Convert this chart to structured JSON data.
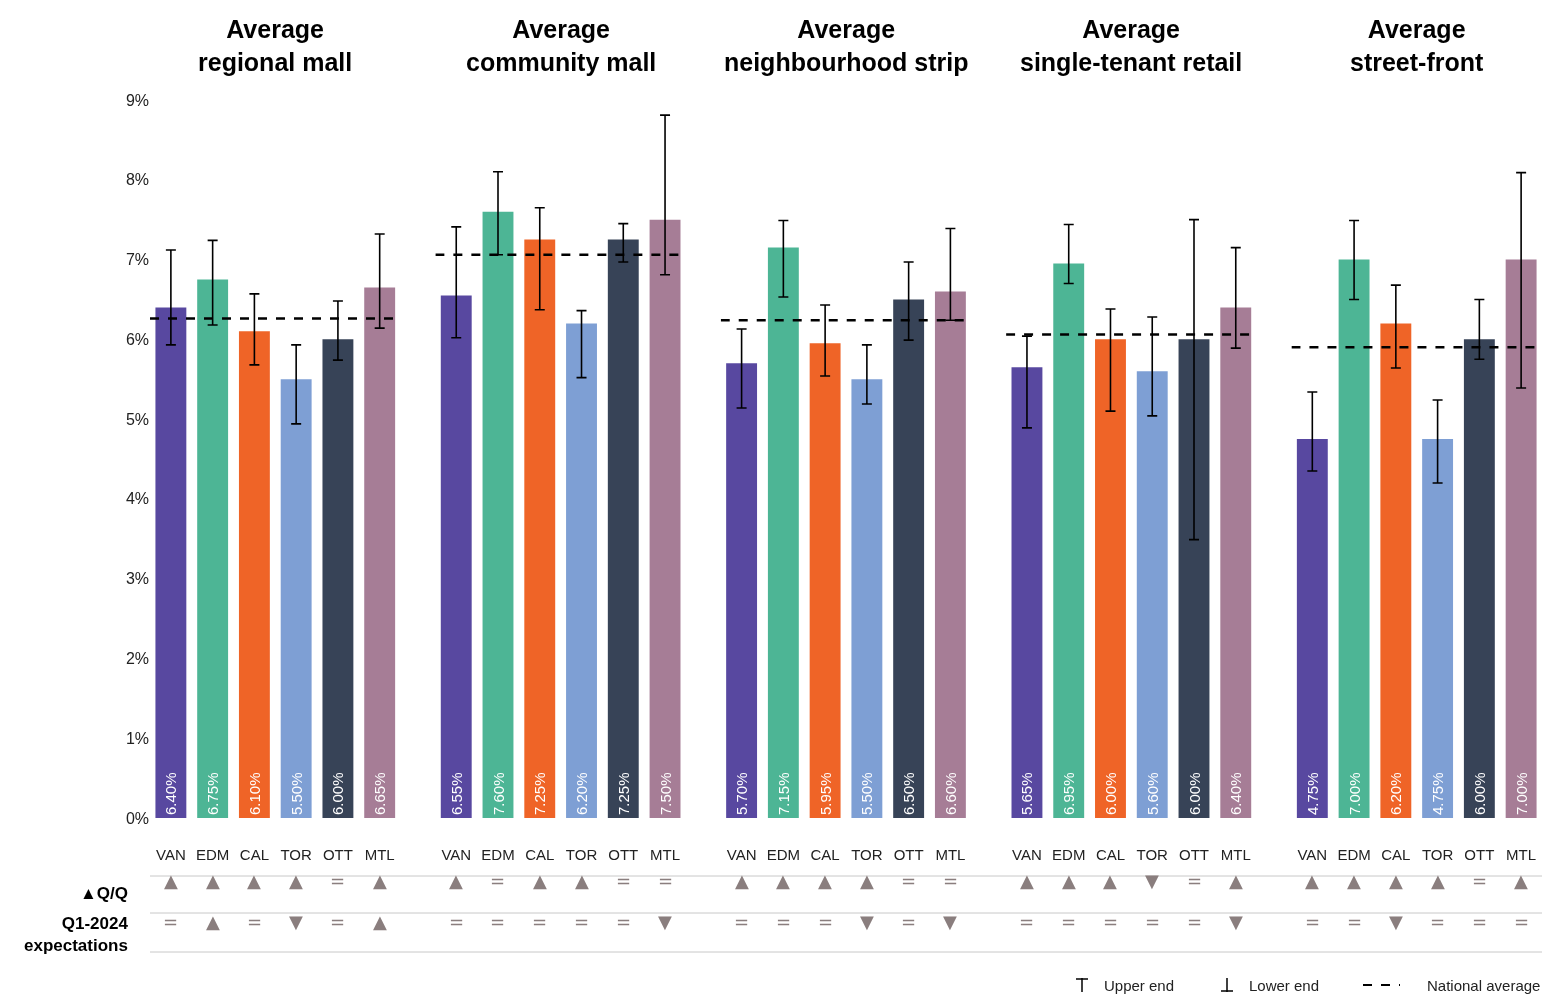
{
  "chart_data": [
    {
      "type": "bar",
      "title": "Average\nregional mall",
      "categories": [
        "VAN",
        "EDM",
        "CAL",
        "TOR",
        "OTT",
        "MTL"
      ],
      "values": [
        6.4,
        6.75,
        6.1,
        5.5,
        6.0,
        6.65
      ],
      "colors": [
        "#5848a0",
        "#4db595",
        "#ef6427",
        "#7e9fd4",
        "#374357",
        "#a67d96"
      ],
      "errors": [
        [
          5.93,
          7.12
        ],
        [
          6.18,
          7.24
        ],
        [
          5.68,
          6.57
        ],
        [
          4.94,
          5.93
        ],
        [
          5.74,
          6.48
        ],
        [
          6.14,
          7.32
        ]
      ],
      "value_labels": [
        "6.40%",
        "6.75%",
        "6.10%",
        "5.50%",
        "6.00%",
        "6.65%"
      ],
      "ylim": [
        0,
        9
      ],
      "yticks": [
        {
          "value": 0,
          "label": "0%"
        },
        {
          "value": 1,
          "label": "1%"
        },
        {
          "value": 2,
          "label": "2%"
        },
        {
          "value": 3,
          "label": "3%"
        },
        {
          "value": 4,
          "label": "4%"
        },
        {
          "value": 5,
          "label": "5%"
        },
        {
          "value": 6,
          "label": "6%"
        },
        {
          "value": 7,
          "label": "7%"
        },
        {
          "value": 8,
          "label": "8%"
        },
        {
          "value": 9,
          "label": "9%"
        }
      ],
      "ref_lines": [
        {
          "axis": "y",
          "value": 6.26,
          "color": "#000000",
          "line_style": "dashed"
        }
      ],
      "annotations": [
        "▲Q/Q",
        "Q1-2024\nexpectations",
        "▲",
        "▲",
        "▲",
        "▲",
        "=",
        "▲",
        "=",
        "▲",
        "=",
        "▼",
        "=",
        "▲"
      ]
    },
    {
      "type": "bar",
      "title": "Average\ncommunity mall",
      "categories": [
        "VAN",
        "EDM",
        "CAL",
        "TOR",
        "OTT",
        "MTL"
      ],
      "values": [
        6.55,
        7.6,
        7.25,
        6.2,
        7.25,
        7.5
      ],
      "colors": [
        "#5848a0",
        "#4db595",
        "#ef6427",
        "#7e9fd4",
        "#374357",
        "#a67d96"
      ],
      "errors": [
        [
          6.02,
          7.41
        ],
        [
          7.06,
          8.1
        ],
        [
          6.37,
          7.65
        ],
        [
          5.52,
          6.36
        ],
        [
          6.97,
          7.45
        ],
        [
          6.81,
          8.81
        ]
      ],
      "value_labels": [
        "6.55%",
        "7.60%",
        "7.25%",
        "6.20%",
        "7.25%",
        "7.50%"
      ],
      "ylim": [
        0,
        9
      ],
      "tick_labels": "x",
      "ref_lines": [
        {
          "axis": "y",
          "value": 7.06,
          "color": "#000000",
          "line_style": "dashed"
        }
      ],
      "annotations": [
        "▲",
        "=",
        "▲",
        "▲",
        "=",
        "=",
        "=",
        "=",
        "=",
        "=",
        "=",
        "▼"
      ]
    },
    {
      "type": "bar",
      "title": "Average\nneighbourhood strip",
      "categories": [
        "VAN",
        "EDM",
        "CAL",
        "TOR",
        "OTT",
        "MTL"
      ],
      "values": [
        5.7,
        7.15,
        5.95,
        5.5,
        6.5,
        6.6
      ],
      "colors": [
        "#5848a0",
        "#4db595",
        "#ef6427",
        "#7e9fd4",
        "#374357",
        "#a67d96"
      ],
      "errors": [
        [
          5.14,
          6.13
        ],
        [
          6.53,
          7.49
        ],
        [
          5.54,
          6.43
        ],
        [
          5.19,
          5.93
        ],
        [
          5.99,
          6.97
        ],
        [
          6.24,
          7.39
        ]
      ],
      "value_labels": [
        "5.70%",
        "7.15%",
        "5.95%",
        "5.50%",
        "6.50%",
        "6.60%"
      ],
      "ylim": [
        0,
        9
      ],
      "tick_labels": "x",
      "ref_lines": [
        {
          "axis": "y",
          "value": 6.24,
          "color": "#000000",
          "line_style": "dashed"
        }
      ],
      "annotations": [
        "▲",
        "▲",
        "▲",
        "▲",
        "=",
        "=",
        "=",
        "=",
        "=",
        "▼",
        "=",
        "▼"
      ]
    },
    {
      "type": "bar",
      "title": "Average\nsingle-tenant retail",
      "categories": [
        "VAN",
        "EDM",
        "CAL",
        "TOR",
        "OTT",
        "MTL"
      ],
      "values": [
        5.65,
        6.95,
        6.0,
        5.6,
        6.0,
        6.4
      ],
      "colors": [
        "#5848a0",
        "#4db595",
        "#ef6427",
        "#7e9fd4",
        "#374357",
        "#a67d96"
      ],
      "errors": [
        [
          4.89,
          6.04
        ],
        [
          6.7,
          7.44
        ],
        [
          5.1,
          6.38
        ],
        [
          5.04,
          6.28
        ],
        [
          3.49,
          7.5
        ],
        [
          5.89,
          7.15
        ]
      ],
      "value_labels": [
        "5.65%",
        "6.95%",
        "6.00%",
        "5.60%",
        "6.00%",
        "6.40%"
      ],
      "ylim": [
        0,
        9
      ],
      "tick_labels": "x",
      "ref_lines": [
        {
          "axis": "y",
          "value": 6.06,
          "color": "#000000",
          "line_style": "dashed"
        }
      ],
      "annotations": [
        "▲",
        "▲",
        "▲",
        "▼",
        "=",
        "▲",
        "=",
        "=",
        "=",
        "=",
        "=",
        "▼"
      ]
    },
    {
      "type": "bar",
      "title": "Average\nstreet-front",
      "categories": [
        "VAN",
        "EDM",
        "CAL",
        "TOR",
        "OTT",
        "MTL"
      ],
      "values": [
        4.75,
        7.0,
        6.2,
        4.75,
        6.0,
        7.0
      ],
      "colors": [
        "#5848a0",
        "#4db595",
        "#ef6427",
        "#7e9fd4",
        "#374357",
        "#a67d96"
      ],
      "errors": [
        [
          4.35,
          5.34
        ],
        [
          6.5,
          7.49
        ],
        [
          5.64,
          6.68
        ],
        [
          4.2,
          5.24
        ],
        [
          5.75,
          6.5
        ],
        [
          5.39,
          8.09
        ]
      ],
      "value_labels": [
        "4.75%",
        "7.00%",
        "6.20%",
        "4.75%",
        "6.00%",
        "7.00%"
      ],
      "ylim": [
        0,
        9
      ],
      "tick_labels": "x",
      "ref_lines": [
        {
          "axis": "y",
          "value": 5.9,
          "color": "#000000",
          "line_style": "dashed",
          "label": "National average"
        }
      ],
      "annotations": [
        "Upper end",
        "Lower end",
        "▲",
        "▲",
        "▲",
        "▲",
        "=",
        "▲",
        "=",
        "=",
        "▼",
        "=",
        "=",
        "="
      ]
    }
  ]
}
